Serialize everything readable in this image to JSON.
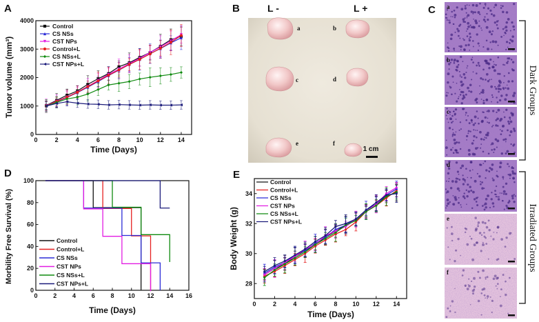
{
  "panel_labels": {
    "A": "A",
    "B": "B",
    "C": "C",
    "D": "D",
    "E": "E"
  },
  "panel_b": {
    "col_left": "L -",
    "col_right": "L +",
    "tags": [
      "a",
      "b",
      "c",
      "d",
      "e",
      "f"
    ],
    "scale_bar": "1 cm",
    "colors": {
      "paper": "#e8e2d4",
      "tumor": "#f2c9c9"
    }
  },
  "panel_c": {
    "tiles": [
      "a",
      "b",
      "c",
      "d",
      "e",
      "f"
    ],
    "dark_label": "Dark Groups",
    "irradiated_label": "Irradiated Groups",
    "colors": {
      "dense": "#a57cc6",
      "necrotic": "#e3c2dd",
      "nucleus": "#4a2a86"
    }
  },
  "chart_data": [
    {
      "panel": "A",
      "type": "line",
      "xlabel": "Time (Days)",
      "ylabel": "Tumor volume (mm³)",
      "xlim": [
        0,
        15
      ],
      "ylim": [
        0,
        4000
      ],
      "xticks": [
        0,
        2,
        4,
        6,
        8,
        10,
        12,
        14
      ],
      "yticks": [
        0,
        1000,
        2000,
        3000,
        4000
      ],
      "x": [
        1,
        2,
        3,
        4,
        5,
        6,
        7,
        8,
        9,
        10,
        11,
        12,
        13,
        14
      ],
      "series": [
        {
          "name": "Control",
          "color": "#111111",
          "marker": "square",
          "values": [
            1020,
            1200,
            1380,
            1530,
            1760,
            1960,
            2140,
            2380,
            2520,
            2710,
            2880,
            3100,
            3330,
            3450
          ]
        },
        {
          "name": "CS NSs",
          "color": "#2a2ad6",
          "marker": "triangle",
          "values": [
            1000,
            1150,
            1300,
            1470,
            1660,
            1860,
            2070,
            2260,
            2460,
            2640,
            2840,
            3020,
            3220,
            3400
          ]
        },
        {
          "name": "CST NPs",
          "color": "#e21be2",
          "marker": "down-triangle",
          "values": [
            1010,
            1170,
            1320,
            1490,
            1690,
            1900,
            2110,
            2300,
            2490,
            2680,
            2880,
            3080,
            3290,
            3510
          ]
        },
        {
          "name": "Control+L",
          "color": "#e51f1f",
          "marker": "circle",
          "values": [
            1000,
            1160,
            1310,
            1480,
            1680,
            1880,
            2080,
            2270,
            2460,
            2640,
            2830,
            3030,
            3240,
            3480
          ]
        },
        {
          "name": "CS NSs+L",
          "color": "#0f8a0f",
          "marker": "diamond",
          "values": [
            1000,
            1130,
            1250,
            1310,
            1420,
            1580,
            1740,
            1800,
            1860,
            1950,
            2010,
            2060,
            2110,
            2180
          ]
        },
        {
          "name": "CST NPs+L",
          "color": "#1a1a7a",
          "marker": "left-triangle",
          "values": [
            1000,
            1090,
            1150,
            1100,
            1070,
            1060,
            1040,
            1050,
            1040,
            1030,
            1040,
            1030,
            1030,
            1040
          ]
        }
      ]
    },
    {
      "panel": "D",
      "type": "line",
      "xlabel": "Time (Days)",
      "ylabel": "Morbility Free Survival (%)",
      "xlim": [
        0,
        16
      ],
      "ylim": [
        0,
        100
      ],
      "xticks": [
        0,
        2,
        4,
        6,
        8,
        10,
        12,
        14,
        16
      ],
      "yticks": [
        0,
        20,
        40,
        60,
        80,
        100
      ],
      "series": [
        {
          "name": "Control",
          "color": "#111111",
          "steps": [
            [
              1,
              100
            ],
            [
              6,
              75
            ],
            [
              11,
              0
            ]
          ]
        },
        {
          "name": "Control+L",
          "color": "#e51f1f",
          "steps": [
            [
              1,
              100
            ],
            [
              7,
              75
            ],
            [
              10,
              50
            ],
            [
              12,
              0
            ]
          ]
        },
        {
          "name": "CS NSs",
          "color": "#2a2ad6",
          "steps": [
            [
              1,
              100
            ],
            [
              5,
              75
            ],
            [
              9,
              50
            ],
            [
              11,
              25
            ],
            [
              13,
              0
            ]
          ]
        },
        {
          "name": "CST NPs",
          "color": "#e21be2",
          "steps": [
            [
              1,
              100
            ],
            [
              5,
              75
            ],
            [
              7,
              50
            ],
            [
              9,
              25
            ],
            [
              12,
              0
            ]
          ]
        },
        {
          "name": "CS NSs+L",
          "color": "#0f8a0f",
          "steps": [
            [
              1,
              100
            ],
            [
              8,
              75
            ],
            [
              11,
              50
            ],
            [
              14,
              25
            ]
          ]
        },
        {
          "name": "CST NPs+L",
          "color": "#1a1a7a",
          "steps": [
            [
              1,
              100
            ],
            [
              13,
              75
            ],
            [
              14,
              75
            ]
          ]
        }
      ]
    },
    {
      "panel": "E",
      "type": "line",
      "xlabel": "Time (Days)",
      "ylabel": "Body Weight (g)",
      "xlim": [
        0,
        15
      ],
      "ylim": [
        27,
        35
      ],
      "xticks": [
        0,
        2,
        4,
        6,
        8,
        10,
        12,
        14
      ],
      "yticks": [
        28,
        30,
        32,
        34
      ],
      "x": [
        1,
        2,
        3,
        4,
        5,
        6,
        7,
        8,
        9,
        10,
        11,
        12,
        13,
        14
      ],
      "series": [
        {
          "name": "Control",
          "color": "#111111",
          "values": [
            28.6,
            29.0,
            29.3,
            29.8,
            30.2,
            30.6,
            31.1,
            31.5,
            31.9,
            32.3,
            32.8,
            33.3,
            33.8,
            34.1
          ]
        },
        {
          "name": "Control+L",
          "color": "#e51f1f",
          "values": [
            28.5,
            28.8,
            29.2,
            29.6,
            30.0,
            30.5,
            30.9,
            31.3,
            31.6,
            32.1,
            32.8,
            33.2,
            33.7,
            34.2
          ]
        },
        {
          "name": "CS NSs",
          "color": "#2a2ad6",
          "values": [
            28.7,
            29.1,
            29.4,
            29.9,
            30.2,
            30.7,
            31.1,
            31.6,
            31.9,
            32.3,
            32.9,
            33.3,
            33.9,
            34.3
          ]
        },
        {
          "name": "CST NPs",
          "color": "#e21be2",
          "values": [
            28.6,
            29.0,
            29.4,
            29.8,
            30.3,
            30.6,
            31.2,
            31.5,
            31.8,
            32.3,
            32.8,
            33.3,
            34.0,
            34.4
          ]
        },
        {
          "name": "CS NSs+L",
          "color": "#0f8a0f",
          "values": [
            28.4,
            28.9,
            29.3,
            29.7,
            30.1,
            30.6,
            31.0,
            31.4,
            31.9,
            32.2,
            32.8,
            33.2,
            33.8,
            34.1
          ]
        },
        {
          "name": "CST NPs+L",
          "color": "#1a1a7a",
          "values": [
            28.8,
            29.2,
            29.5,
            29.9,
            30.3,
            30.8,
            31.2,
            31.8,
            32.0,
            32.3,
            32.9,
            33.4,
            33.9,
            34.0
          ]
        }
      ]
    }
  ]
}
